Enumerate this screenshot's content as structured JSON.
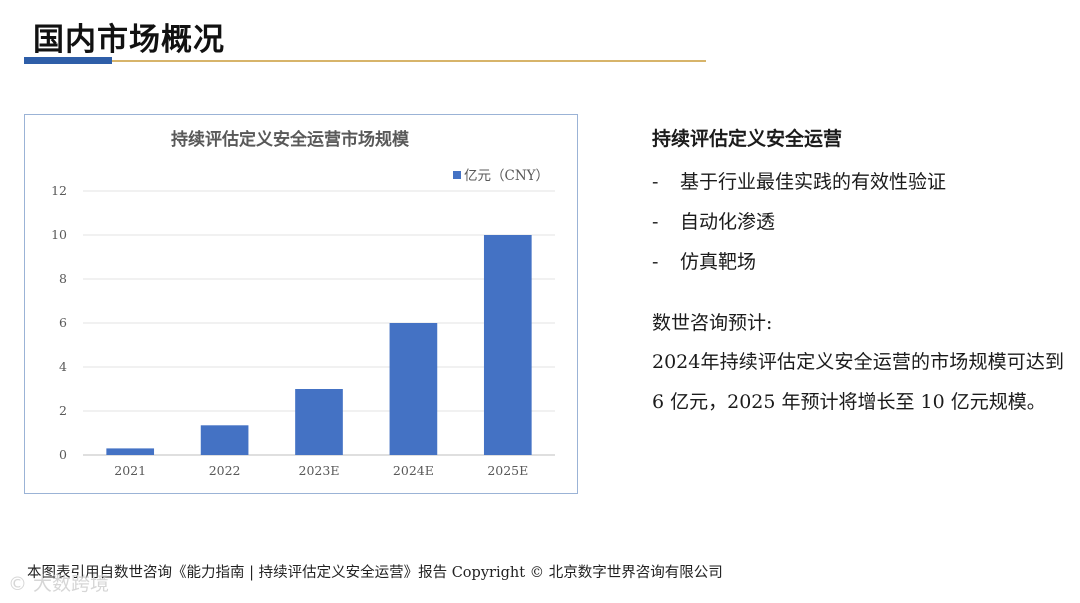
{
  "page": {
    "title": "国内市场概况",
    "footer": "本图表引用自数世咨询《能力指南 | 持续评估定义安全运营》报告 Copyright ©  北京数字世界咨询有限公司",
    "watermark": "© 大数跨境"
  },
  "side": {
    "heading": "持续评估定义安全运营",
    "bullets": [
      {
        "dash": "-",
        "text": "基于行业最佳实践的有效性验证"
      },
      {
        "dash": "-",
        "text": "自动化渗透"
      },
      {
        "dash": "-",
        "text": "仿真靶场"
      }
    ],
    "forecast_label": "数世咨询预计:",
    "forecast_text": "2024年持续评估定义安全运营的市场规模可达到 6 亿元，2025 年预计将增长至 10 亿元规模。"
  },
  "chart_data": {
    "type": "bar",
    "title": "持续评估定义安全运营市场规模",
    "categories": [
      "2021",
      "2022",
      "2023E",
      "2024E",
      "2025E"
    ],
    "series": [
      {
        "name": "亿元（CNY）",
        "values": [
          0.3,
          1.35,
          3.0,
          6.0,
          10.0
        ],
        "color": "#4472c4"
      }
    ],
    "yticks": [
      0,
      2,
      4,
      6,
      8,
      10,
      12
    ],
    "ylim": [
      0,
      12
    ],
    "xlabel": "",
    "ylabel": "",
    "grid": true,
    "legend": "top-right"
  }
}
